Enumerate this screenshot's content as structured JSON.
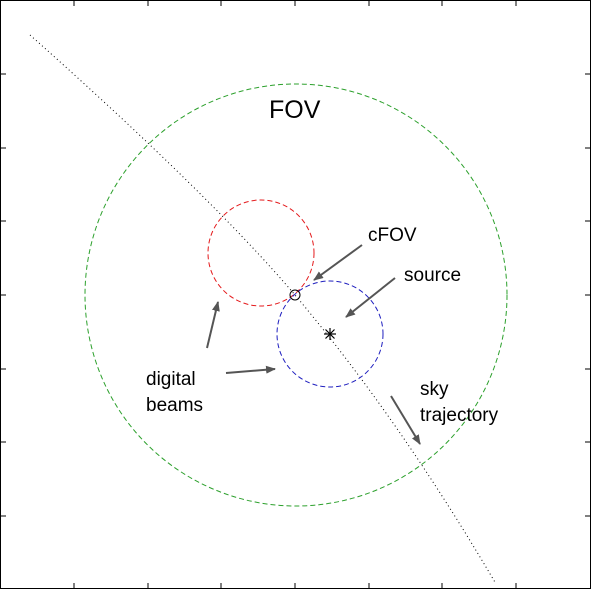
{
  "diagram": {
    "labels": {
      "fov": "FOV",
      "cfov": "cFOV",
      "source": "source",
      "digital": "digital",
      "beams": "beams",
      "sky": "sky",
      "trajectory": "trajectory"
    },
    "colors": {
      "fov_circle": "#2ca02c",
      "beam_1": "#e41a1c",
      "beam_2": "#1f1fbf",
      "trajectory": "#000000",
      "arrows": "#555555",
      "frame": "#000000"
    },
    "markers": {
      "cfov": "circle-marker",
      "source": "asterisk-marker"
    }
  }
}
